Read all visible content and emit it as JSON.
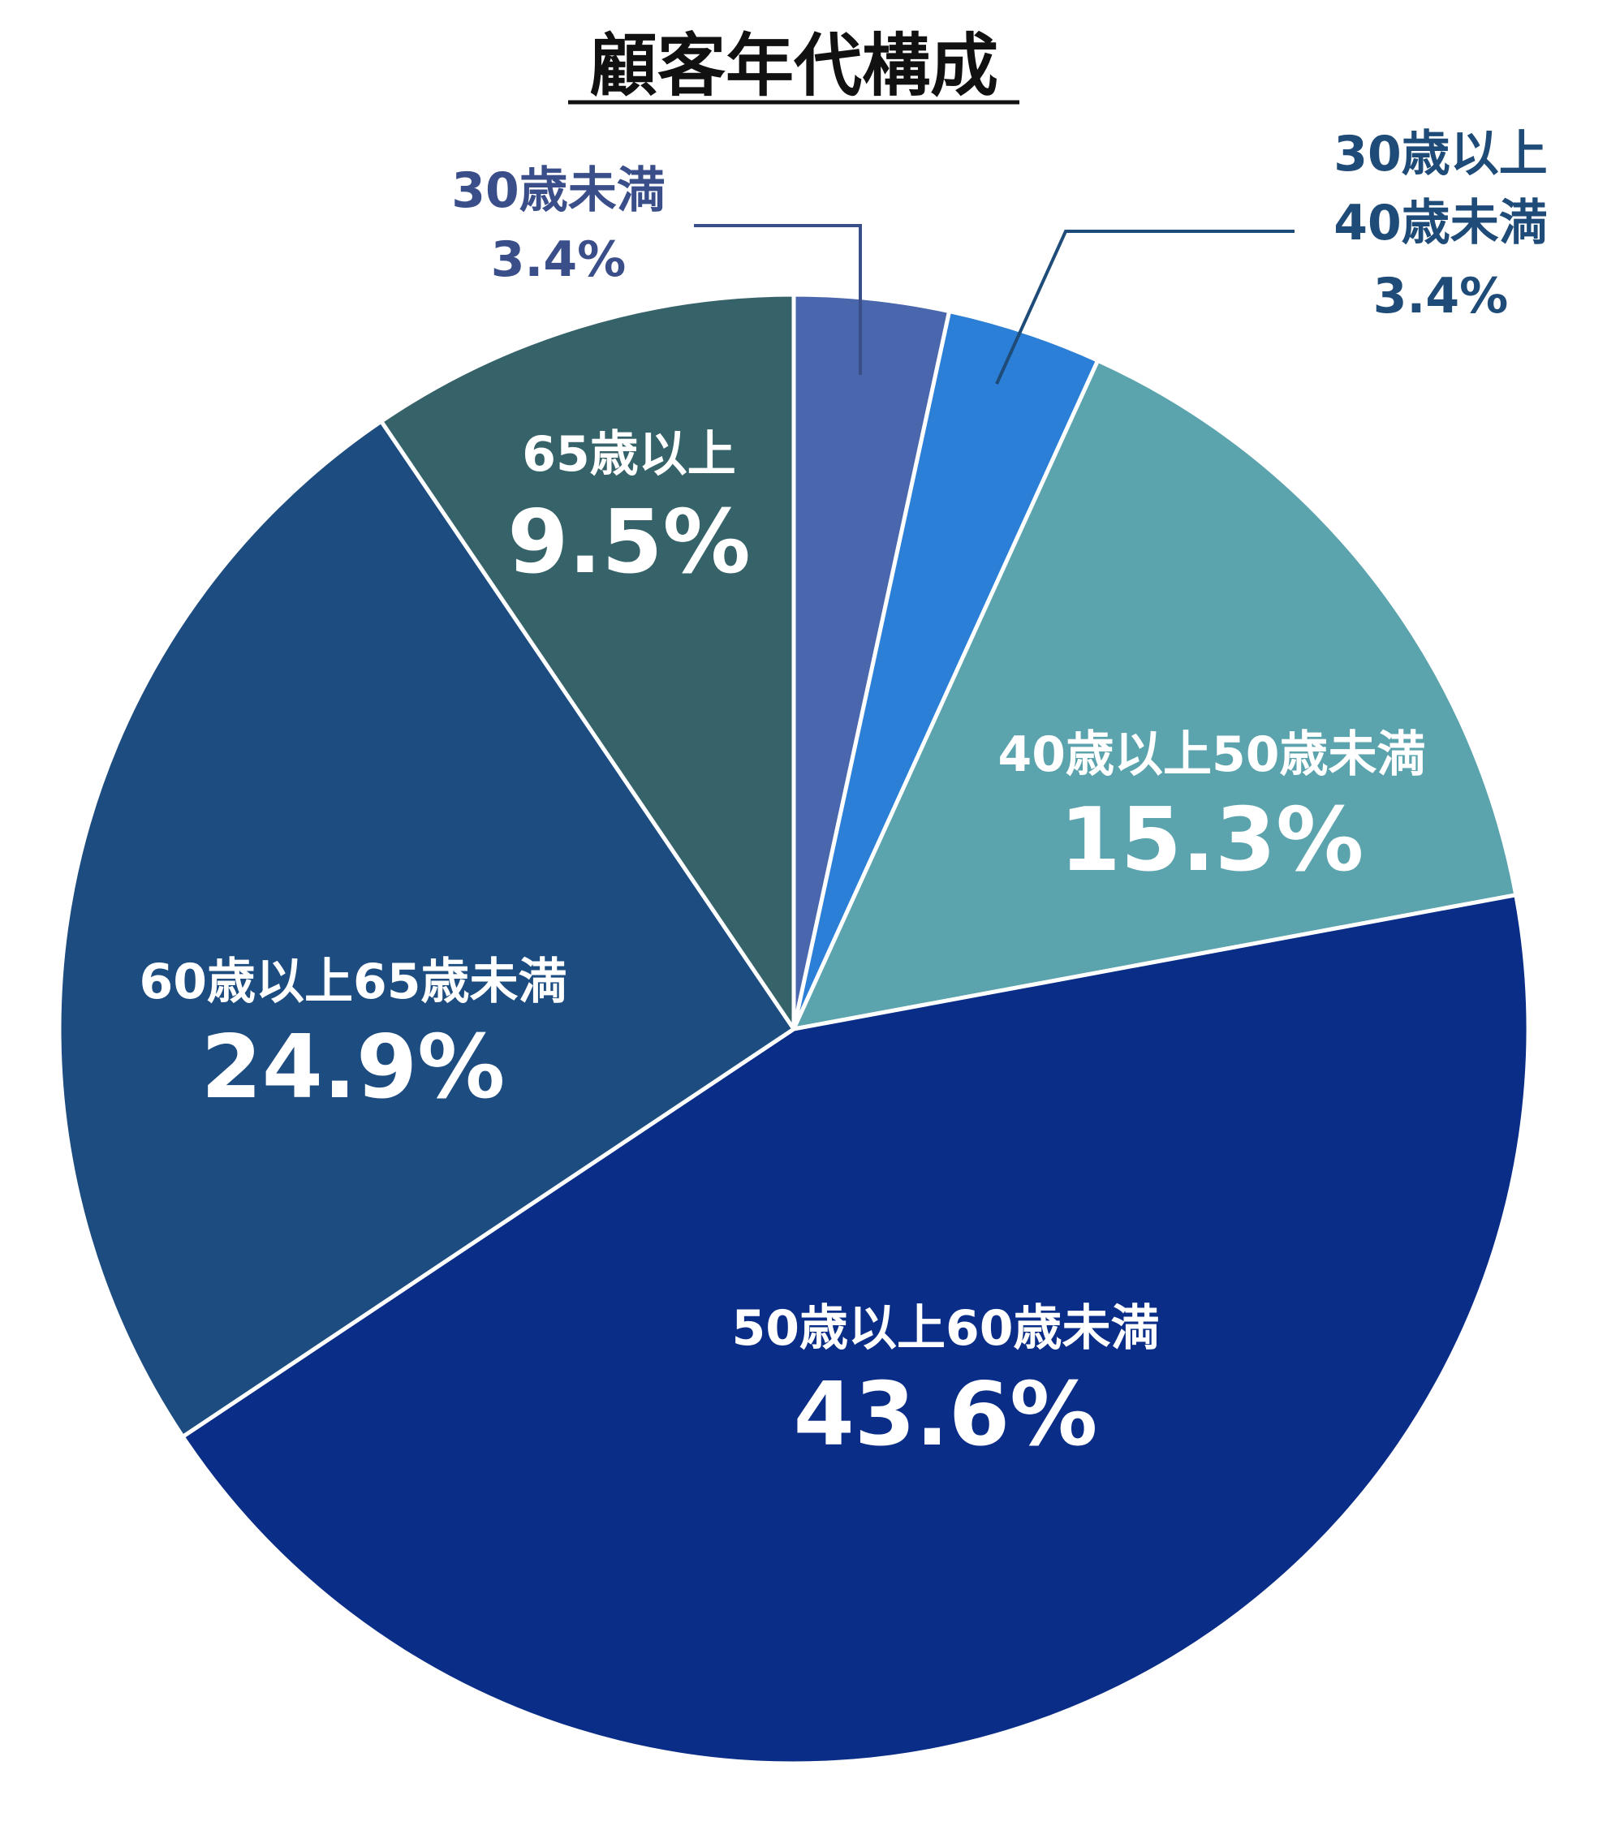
{
  "chart_data": {
    "type": "pie",
    "title": "顧客年代構成",
    "start_angle_deg": 0,
    "direction": "clockwise",
    "slices": [
      {
        "label": "30歳未満",
        "value": 3.4,
        "value_label": "3.4%",
        "color": "#4a67ad",
        "label_color": "#3a4f8a",
        "label_style": "outside"
      },
      {
        "label_lines": [
          "30歳以上",
          "40歳未満"
        ],
        "value": 3.4,
        "value_label": "3.4%",
        "color": "#2b7fd6",
        "label_color": "#1e4b77",
        "label_style": "outside"
      },
      {
        "label": "40歳以上50歳未満",
        "value": 15.3,
        "value_label": "15.3%",
        "color": "#5ba3ad",
        "label_color": "#ffffff",
        "label_style": "inside"
      },
      {
        "label": "50歳以上60歳未満",
        "value": 43.6,
        "value_label": "43.6%",
        "color": "#0a2d87",
        "label_color": "#ffffff",
        "label_style": "inside"
      },
      {
        "label": "60歳以上65歳未満",
        "value": 24.9,
        "value_label": "24.9%",
        "color": "#1c4c80",
        "label_color": "#ffffff",
        "label_style": "inside"
      },
      {
        "label": "65歳以上",
        "value": 9.5,
        "value_label": "9.5%",
        "color": "#366369",
        "label_color": "#ffffff",
        "label_style": "inside"
      }
    ]
  }
}
